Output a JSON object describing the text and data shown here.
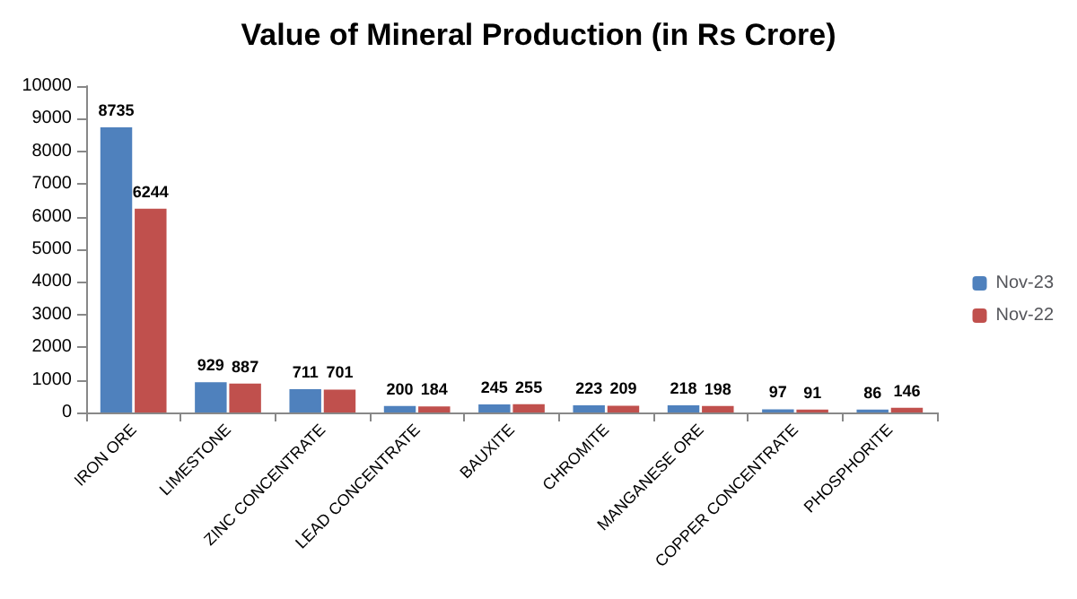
{
  "chart_data": {
    "type": "bar",
    "title": "Value of Mineral Production (in Rs Crore)",
    "categories": [
      "IRON ORE",
      "LIMESTONE",
      "ZINC CONCENTRATE",
      "LEAD CONCENTRATE",
      "BAUXITE",
      "CHROMITE",
      "MANGANESE ORE",
      "COPPER CONCENTRATE",
      "PHOSPHORITE"
    ],
    "series": [
      {
        "name": "Nov-23",
        "color": "#4f81bd",
        "values": [
          8735,
          929,
          711,
          200,
          245,
          223,
          218,
          97,
          86
        ]
      },
      {
        "name": "Nov-22",
        "color": "#c0504d",
        "values": [
          6244,
          887,
          701,
          184,
          255,
          209,
          198,
          91,
          146
        ]
      }
    ],
    "ylim": [
      0,
      10000
    ],
    "yticks": [
      0,
      1000,
      2000,
      3000,
      4000,
      5000,
      6000,
      7000,
      8000,
      9000,
      10000
    ],
    "grid": false,
    "legend": "right",
    "data_labels": true
  }
}
